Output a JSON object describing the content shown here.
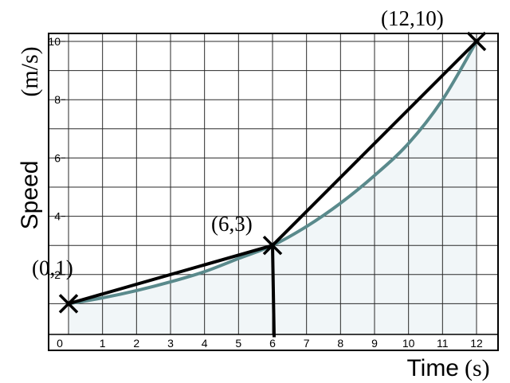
{
  "chart_data": {
    "type": "line",
    "xlabel": "Time",
    "xunit": "(s)",
    "ylabel": "Speed",
    "yunit": "(m/s)",
    "xlim": [
      0,
      12
    ],
    "ylim": [
      0,
      10
    ],
    "xticks": [
      "0",
      "1",
      "2",
      "3",
      "4",
      "5",
      "6",
      "7",
      "8",
      "9",
      "10",
      "11",
      "12"
    ],
    "yticks": [
      "2",
      "4",
      "6",
      "8",
      "10"
    ],
    "grid": true,
    "curve_color": "#5a8a8c",
    "fill_color": "#f1f6f8",
    "series": [
      {
        "style": "curve",
        "x": [
          0,
          1,
          2,
          3,
          4,
          5,
          6,
          7,
          8,
          9,
          10,
          11,
          12
        ],
        "y": [
          1,
          1.2,
          1.45,
          1.75,
          2.1,
          2.55,
          3,
          3.65,
          4.45,
          5.4,
          6.5,
          8.0,
          10
        ]
      },
      {
        "style": "chord",
        "x": [
          0,
          6,
          12
        ],
        "y": [
          1,
          3,
          10
        ]
      },
      {
        "style": "vertical",
        "x": [
          6,
          6
        ],
        "y": [
          -0.15,
          3
        ]
      }
    ],
    "points": [
      {
        "x": 0,
        "y": 1,
        "label": "(0,1)"
      },
      {
        "x": 6,
        "y": 3,
        "label": "(6,3)"
      },
      {
        "x": 12,
        "y": 10,
        "label": "(12,10)"
      }
    ]
  }
}
